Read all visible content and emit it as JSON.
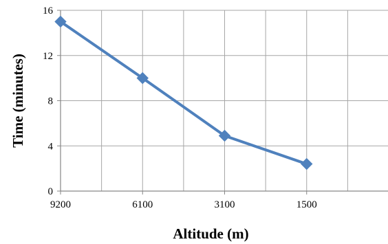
{
  "chart_data": {
    "type": "line",
    "title": "",
    "xlabel": "Altitude (m)",
    "ylabel": "Time (minutes)",
    "categories": [
      "9200",
      "6100",
      "3100",
      "1500"
    ],
    "series": [
      {
        "values": [
          15,
          10,
          4.9,
          2.4
        ],
        "color": "#4f81bd",
        "marker": "diamond"
      }
    ],
    "ylim": [
      0,
      16
    ],
    "yticks": [
      "0",
      "4",
      "8",
      "12",
      "16"
    ],
    "grid": true,
    "legend": "none"
  }
}
